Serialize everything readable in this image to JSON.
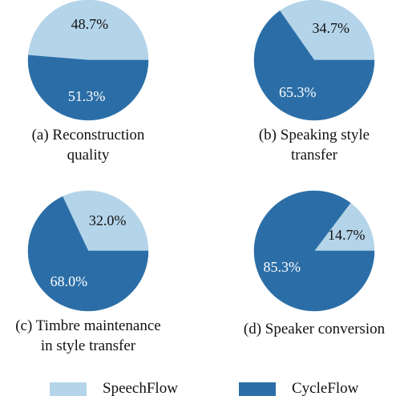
{
  "colors": {
    "speechflow": "#b4d4e9",
    "cycleflow": "#2b6ea7",
    "label_light": "#ffffff",
    "label_dark": "#111111"
  },
  "legend": [
    {
      "name": "SpeechFlow",
      "color": "#b4d4e9"
    },
    {
      "name": "CycleFlow",
      "color": "#2b6ea7"
    }
  ],
  "chart_data": [
    {
      "type": "pie",
      "caption": [
        "(a) Reconstruction",
        "quality"
      ],
      "slices": [
        {
          "series": "SpeechFlow",
          "value": 48.7,
          "label": "48.7%"
        },
        {
          "series": "CycleFlow",
          "value": 51.3,
          "label": "51.3%"
        }
      ]
    },
    {
      "type": "pie",
      "caption": [
        "(b) Speaking style",
        "transfer"
      ],
      "slices": [
        {
          "series": "SpeechFlow",
          "value": 34.7,
          "label": "34.7%"
        },
        {
          "series": "CycleFlow",
          "value": 65.3,
          "label": "65.3%"
        }
      ]
    },
    {
      "type": "pie",
      "caption": [
        "(c) Timbre maintenance",
        "in style transfer"
      ],
      "slices": [
        {
          "series": "SpeechFlow",
          "value": 32.0,
          "label": "32.0%"
        },
        {
          "series": "CycleFlow",
          "value": 68.0,
          "label": "68.0%"
        }
      ]
    },
    {
      "type": "pie",
      "caption": [
        "(d) Speaker conversion"
      ],
      "slices": [
        {
          "series": "SpeechFlow",
          "value": 14.7,
          "label": "14.7%"
        },
        {
          "series": "CycleFlow",
          "value": 85.3,
          "label": "85.3%"
        }
      ]
    }
  ]
}
